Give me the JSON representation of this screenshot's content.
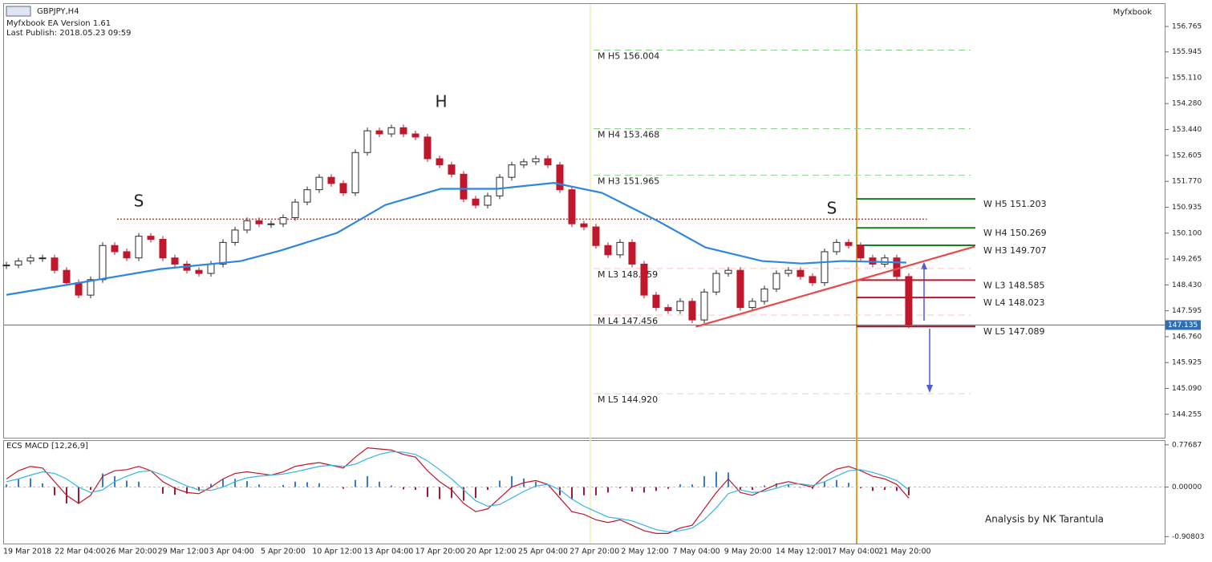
{
  "header": {
    "symbol": "GBPJPY,H4",
    "version": "Myfxbook EA Version 1.61",
    "publish": "Last Publish: 2018.05.23 09:59",
    "brand": "Myfxbook",
    "credit": "Analysis by NK Tarantula",
    "marks": [
      "S",
      "H",
      "S"
    ]
  },
  "chart_data": [
    {
      "type": "candlestick",
      "up_color": "#2b2b2b",
      "down_color": "#c0172c",
      "xlim": [
        -0.2,
        96.27
      ],
      "ylim": [
        143.5,
        157.49
      ],
      "yticks": [
        156.765,
        155.945,
        {
          "value": 155.11,
          "label": "155.110"
        },
        {
          "value": 154.28,
          "label": "154.280"
        },
        {
          "value": 153.44,
          "label": "153.440"
        },
        152.605,
        {
          "value": 151.77,
          "label": "151.770"
        },
        150.935,
        {
          "value": 150.1,
          "label": "150.100"
        },
        149.265,
        {
          "value": 148.43,
          "label": "148.430"
        },
        147.595,
        {
          "value": 146.76,
          "label": "146.760"
        },
        145.925,
        {
          "value": 145.09,
          "label": "145.090"
        },
        144.255
      ],
      "time_labels": [
        "19 Mar 2018",
        "22 Mar 04:00",
        "26 Mar 20:00",
        "29 Mar 12:00",
        "3 Apr 04:00",
        "5 Apr 20:00",
        "10 Apr 12:00",
        "13 Apr 04:00",
        "17 Apr 20:00",
        "20 Apr 12:00",
        "25 Apr 04:00",
        "27 Apr 20:00",
        "2 May 12:00",
        "7 May 04:00",
        "9 May 20:00",
        "14 May 12:00",
        "17 May 04:00",
        "21 May 20:00"
      ],
      "closes": [
        149.07,
        149.2,
        149.3,
        149.3,
        148.9,
        148.5,
        148.1,
        148.6,
        149.7,
        149.5,
        149.3,
        150.0,
        149.9,
        149.3,
        149.1,
        148.9,
        148.8,
        149.1,
        149.8,
        150.2,
        150.5,
        150.4,
        150.4,
        150.6,
        151.1,
        151.5,
        151.9,
        151.7,
        151.4,
        152.7,
        153.4,
        153.3,
        153.5,
        153.3,
        153.2,
        152.5,
        152.3,
        152.0,
        151.2,
        151.0,
        151.3,
        151.9,
        152.3,
        152.4,
        152.5,
        152.3,
        151.5,
        150.4,
        150.3,
        149.7,
        149.4,
        149.8,
        149.1,
        148.1,
        147.7,
        147.6,
        147.9,
        147.3,
        148.2,
        148.8,
        148.9,
        147.7,
        147.9,
        148.3,
        148.8,
        148.9,
        148.7,
        148.5,
        149.5,
        149.8,
        149.7,
        149.3,
        149.1,
        149.3,
        148.7,
        147.14
      ],
      "ma": {
        "color": "#2e86de",
        "x": [
          0,
          6.1,
          12.8,
          19.5,
          22.8,
          27.5,
          31.5,
          36.1,
          40.8,
          45.5,
          49.5,
          54.1,
          58.1,
          62.8,
          66.1,
          69.5,
          74.8
        ],
        "values": [
          148.11,
          148.5,
          148.94,
          149.2,
          149.54,
          150.11,
          151.01,
          151.53,
          151.53,
          151.72,
          151.4,
          150.5,
          149.64,
          149.2,
          149.12,
          149.2,
          149.15
        ]
      },
      "resistance": {
        "value": 150.55,
        "x": [
          9.2,
          76.5
        ],
        "color": "#e8302a"
      },
      "trendline": {
        "x": [
          57.3,
          80.5
        ],
        "values": [
          147.08,
          149.67
        ],
        "color": "#e84a4a"
      },
      "last_price": 147.135,
      "levels": [
        {
          "label": "M H5 156.004",
          "value": 156.004,
          "color": "#8fd18f",
          "style": "dashed"
        },
        {
          "label": "M H4 153.468",
          "value": 153.468,
          "color": "#8fd18f",
          "style": "dashed"
        },
        {
          "label": "M H3 151.965",
          "value": 151.965,
          "color": "#8fd18f",
          "style": "dashed"
        },
        {
          "label": "M L3 148.959",
          "value": 148.959,
          "color": "#f4c9c9",
          "style": "dashed"
        },
        {
          "label": "M L4 147.456",
          "value": 147.456,
          "color": "#f4c9c9",
          "style": "dashed"
        },
        {
          "label": "M L5 144.920",
          "value": 144.92,
          "color": "#f4c9c9",
          "style": "dashed"
        },
        {
          "label": "W H5 151.203",
          "value": 151.203,
          "color": "#1e7a1e",
          "style": "solid"
        },
        {
          "label": "W H4 150.269",
          "value": 150.269,
          "color": "#1e7a1e",
          "style": "solid"
        },
        {
          "label": "W H3 149.707",
          "value": 149.707,
          "color": "#1e7a1e",
          "style": "solid"
        },
        {
          "label": "W L3 148.585",
          "value": 148.585,
          "color": "#b01c2e",
          "style": "solid"
        },
        {
          "label": "W L4 148.023",
          "value": 148.023,
          "color": "#b01c2e",
          "style": "solid"
        },
        {
          "label": "W L5 147.089",
          "value": 147.089,
          "color": "#8a1428",
          "style": "solid"
        }
      ]
    },
    {
      "type": "macd",
      "title": "ECS MACD [12,26,9]",
      "ylim": [
        -1.036,
        0.847
      ],
      "yticks": [
        0.77687,
        {
          "value": 0,
          "label": "0.00000"
        },
        -0.90803
      ],
      "histogram": {
        "color_up": "#3a7cc4",
        "color_down": "#9b1b3a",
        "values": [
          0.05,
          0.15,
          0.16,
          0.07,
          -0.15,
          -0.3,
          -0.3,
          -0.05,
          0.25,
          0.2,
          0.12,
          0.1,
          0.0,
          -0.12,
          -0.14,
          -0.12,
          -0.07,
          0.06,
          0.15,
          0.15,
          0.11,
          0.05,
          0.0,
          0.04,
          0.1,
          0.09,
          0.07,
          0.0,
          -0.03,
          0.13,
          0.2,
          0.1,
          0.03,
          -0.04,
          -0.05,
          -0.18,
          -0.22,
          -0.2,
          -0.25,
          -0.2,
          -0.05,
          0.12,
          0.2,
          0.16,
          0.1,
          0.0,
          -0.15,
          -0.23,
          -0.15,
          -0.15,
          -0.1,
          -0.02,
          -0.08,
          -0.1,
          -0.07,
          -0.03,
          0.05,
          0.05,
          0.2,
          0.28,
          0.27,
          -0.05,
          -0.05,
          0.03,
          0.07,
          0.05,
          -0.01,
          -0.03,
          0.1,
          0.13,
          0.08,
          -0.02,
          -0.07,
          -0.05,
          -0.07,
          -0.15
        ]
      },
      "macd": {
        "color": "#c0172c",
        "values": [
          0.15,
          0.3,
          0.38,
          0.35,
          0.1,
          -0.15,
          -0.3,
          -0.15,
          0.2,
          0.3,
          0.32,
          0.38,
          0.3,
          0.1,
          -0.02,
          -0.1,
          -0.12,
          0.0,
          0.15,
          0.25,
          0.28,
          0.25,
          0.22,
          0.28,
          0.38,
          0.42,
          0.45,
          0.4,
          0.35,
          0.55,
          0.72,
          0.7,
          0.68,
          0.6,
          0.55,
          0.3,
          0.1,
          -0.05,
          -0.3,
          -0.45,
          -0.4,
          -0.2,
          0.0,
          0.08,
          0.12,
          0.05,
          -0.2,
          -0.45,
          -0.5,
          -0.6,
          -0.65,
          -0.6,
          -0.7,
          -0.8,
          -0.85,
          -0.85,
          -0.75,
          -0.7,
          -0.4,
          -0.1,
          0.15,
          -0.1,
          -0.15,
          -0.05,
          0.05,
          0.1,
          0.05,
          0.0,
          0.2,
          0.33,
          0.38,
          0.3,
          0.2,
          0.15,
          0.05,
          -0.2
        ]
      },
      "signal": {
        "color": "#35b5e5",
        "values": [
          0.1,
          0.15,
          0.22,
          0.28,
          0.25,
          0.15,
          0.0,
          -0.1,
          -0.05,
          0.1,
          0.2,
          0.28,
          0.3,
          0.22,
          0.12,
          0.02,
          -0.05,
          -0.06,
          0.0,
          0.1,
          0.17,
          0.2,
          0.22,
          0.24,
          0.28,
          0.33,
          0.38,
          0.4,
          0.38,
          0.42,
          0.52,
          0.6,
          0.65,
          0.64,
          0.6,
          0.48,
          0.32,
          0.15,
          -0.05,
          -0.25,
          -0.35,
          -0.32,
          -0.2,
          -0.08,
          0.02,
          0.05,
          -0.05,
          -0.22,
          -0.35,
          -0.45,
          -0.55,
          -0.58,
          -0.62,
          -0.7,
          -0.78,
          -0.82,
          -0.8,
          -0.75,
          -0.6,
          -0.38,
          -0.12,
          -0.05,
          -0.1,
          -0.08,
          -0.02,
          0.05,
          0.06,
          0.03,
          0.1,
          0.2,
          0.3,
          0.32,
          0.27,
          0.2,
          0.12,
          -0.05
        ]
      }
    }
  ]
}
